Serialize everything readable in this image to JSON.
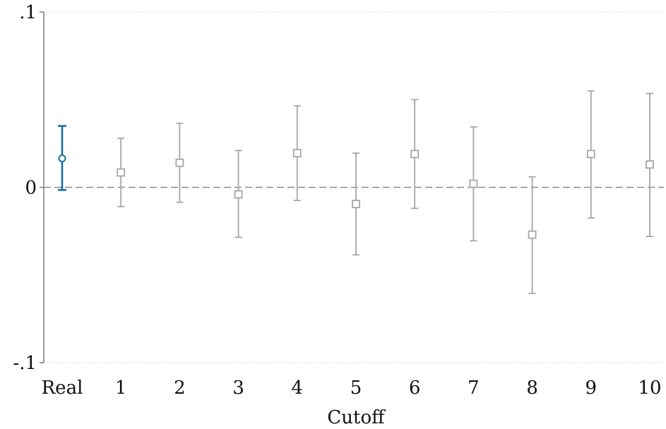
{
  "chart_data": {
    "type": "scatter",
    "xlabel": "Cutoff",
    "ylabel": "",
    "categories": [
      "Real",
      "1",
      "2",
      "3",
      "4",
      "5",
      "6",
      "7",
      "8",
      "9",
      "10"
    ],
    "ylim": [
      -0.1,
      0.1
    ],
    "yticks": [
      -0.1,
      0,
      0.1
    ],
    "ytick_labels": [
      "-.1",
      "0",
      ".1"
    ],
    "reference_line": 0,
    "grid": false,
    "legend": "none",
    "series": [
      {
        "marker": "circle",
        "color": "#1a6fa3",
        "categories": [
          "Real"
        ],
        "values": [
          0.0165
        ],
        "ci_low": [
          -0.0015
        ],
        "ci_high": [
          0.035
        ]
      },
      {
        "marker": "square",
        "color": "#a6a6a6",
        "categories": [
          "1",
          "2",
          "3",
          "4",
          "5",
          "6",
          "7",
          "8",
          "9",
          "10"
        ],
        "values": [
          0.0085,
          0.014,
          -0.004,
          0.0195,
          -0.0095,
          0.019,
          0.002,
          -0.027,
          0.019,
          0.013
        ],
        "ci_low": [
          -0.011,
          -0.0085,
          -0.0285,
          -0.0075,
          -0.0385,
          -0.012,
          -0.0305,
          -0.0605,
          -0.0175,
          -0.028
        ],
        "ci_high": [
          0.028,
          0.0365,
          0.021,
          0.0465,
          0.0195,
          0.05,
          0.0345,
          0.006,
          0.055,
          0.0535
        ]
      }
    ]
  }
}
